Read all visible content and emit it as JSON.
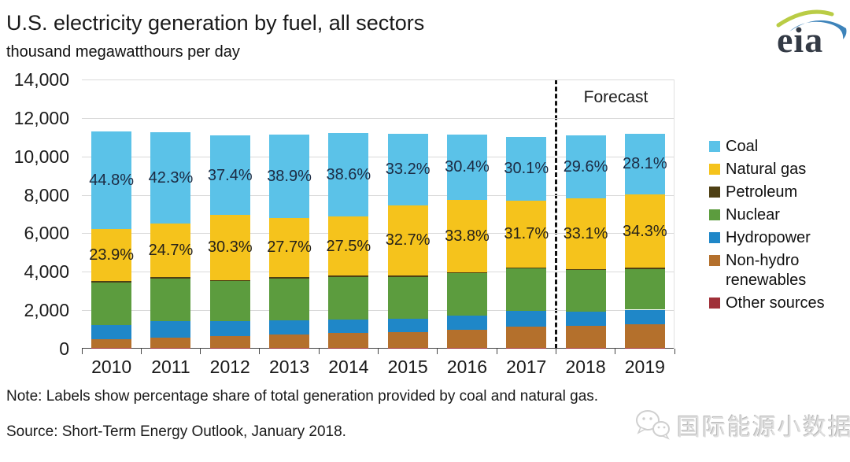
{
  "header": {
    "title": "U.S. electricity generation by fuel, all sectors",
    "subtitle": "thousand megawatthours per day"
  },
  "logo": {
    "text": "eia"
  },
  "forecast_label": "Forecast",
  "chart_data": {
    "type": "stacked-bar",
    "title": "U.S. electricity generation by fuel, all sectors",
    "ylabel": "thousand megawatthours per day",
    "categories": [
      2010,
      2011,
      2012,
      2013,
      2014,
      2015,
      2016,
      2017,
      2018,
      2019
    ],
    "ylim": [
      0,
      14000
    ],
    "ytick_interval": 2000,
    "ytick_labels_top_to_bottom": [
      "14,000",
      "12,000",
      "10,000",
      "8,000",
      "6,000",
      "4,000",
      "2,000",
      "0"
    ],
    "grid": true,
    "legend_position": "right",
    "forecast_divider_after": 2017,
    "series": [
      {
        "name": "Coal",
        "color": "#5BC2E8",
        "values": [
          5062,
          4759,
          4148,
          4333,
          4323,
          3712,
          3388,
          3320,
          3283,
          3139
        ]
      },
      {
        "name": "Natural gas",
        "color": "#F5C31C",
        "values": [
          2701,
          2779,
          3360,
          3086,
          3080,
          3656,
          3767,
          3497,
          3671,
          3831
        ]
      },
      {
        "name": "Petroleum",
        "color": "#4E4014",
        "values": [
          101,
          84,
          64,
          74,
          85,
          77,
          67,
          56,
          54,
          53
        ]
      },
      {
        "name": "Nuclear",
        "color": "#5C9C3E",
        "values": [
          2211,
          2175,
          2102,
          2161,
          2182,
          2185,
          2192,
          2190,
          2150,
          2120
        ]
      },
      {
        "name": "Hydropower",
        "color": "#1F87C8",
        "values": [
          715,
          871,
          752,
          735,
          710,
          687,
          730,
          815,
          755,
          745
        ]
      },
      {
        "name": "Non-hydro renewables",
        "color": "#B4702C",
        "values": [
          459,
          532,
          614,
          701,
          770,
          813,
          951,
          1102,
          1127,
          1232
        ]
      },
      {
        "name": "Other sources",
        "color": "#A03038",
        "values": [
          51,
          50,
          50,
          50,
          50,
          50,
          50,
          50,
          50,
          50
        ]
      }
    ],
    "stack_order_bottom_to_top": [
      "Other sources",
      "Non-hydro renewables",
      "Hydropower",
      "Nuclear",
      "Petroleum",
      "Natural gas",
      "Coal"
    ],
    "bar_totals": [
      11300,
      11250,
      11090,
      11140,
      11200,
      11180,
      11145,
      11030,
      11090,
      11170
    ],
    "coal_share_labels": [
      "44.8%",
      "42.3%",
      "37.4%",
      "38.9%",
      "38.6%",
      "33.2%",
      "30.4%",
      "30.1%",
      "29.6%",
      "28.1%"
    ],
    "gas_share_labels": [
      "23.9%",
      "24.7%",
      "30.3%",
      "27.7%",
      "27.5%",
      "32.7%",
      "33.8%",
      "31.7%",
      "33.1%",
      "34.3%"
    ],
    "share_label_colors": {
      "coal": "#1c2a42",
      "natural_gas": "#25211a"
    }
  },
  "legend": {
    "items": [
      {
        "label": "Coal",
        "color": "#5BC2E8"
      },
      {
        "label": "Natural gas",
        "color": "#F5C31C"
      },
      {
        "label": "Petroleum",
        "color": "#4E4014"
      },
      {
        "label": "Nuclear",
        "color": "#5C9C3E"
      },
      {
        "label": "Hydropower",
        "color": "#1F87C8"
      },
      {
        "label": "Non-hydro renewables",
        "color": "#B4702C"
      },
      {
        "label": "Other sources",
        "color": "#A03038"
      }
    ]
  },
  "footer": {
    "note": "Note: Labels show percentage share of total generation provided by coal and natural gas.",
    "source": "Source: Short-Term Energy Outlook, January 2018."
  },
  "watermark": {
    "text": "国际能源小数据",
    "icon": "wechat-icon"
  },
  "colors": {
    "gridline": "#d9d9d9",
    "axis": "#444444",
    "forecast_divider": "#111111"
  }
}
